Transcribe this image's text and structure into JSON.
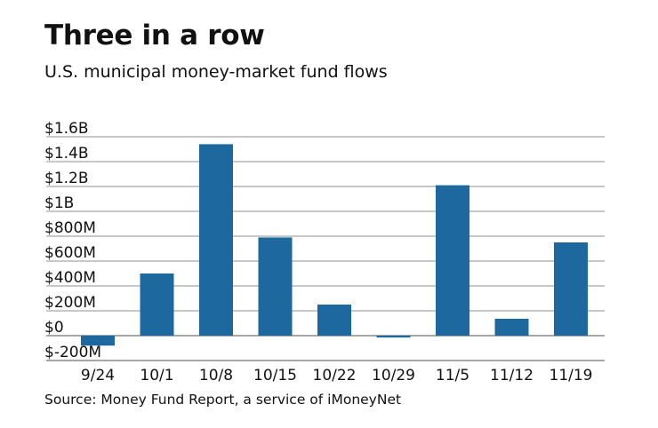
{
  "chart_data": {
    "type": "bar",
    "title": "Three in a row",
    "subtitle": "U.S. municipal money-market fund flows",
    "source": "Source: Money Fund Report, a service of iMoneyNet",
    "xlabel": "",
    "ylabel": "",
    "categories": [
      "9/24",
      "10/1",
      "10/8",
      "10/15",
      "10/22",
      "10/29",
      "11/5",
      "11/12",
      "11/19"
    ],
    "values": [
      -80,
      500,
      1540,
      790,
      250,
      -15,
      1210,
      136,
      750
    ],
    "units": "millions of dollars",
    "ylim": [
      -200,
      1600
    ],
    "yticks": [
      1600,
      1400,
      1200,
      1000,
      800,
      600,
      400,
      200,
      0,
      -200
    ],
    "ytick_labels": [
      "$1.6B",
      "$1.4B",
      "$1.2B",
      "$1B",
      "$800M",
      "$600M",
      "$400M",
      "$200M",
      "$0",
      "$-200M"
    ],
    "grid": true,
    "legend": "none",
    "bar_color": "#1c689f",
    "grid_color": "#b5b5b5"
  }
}
